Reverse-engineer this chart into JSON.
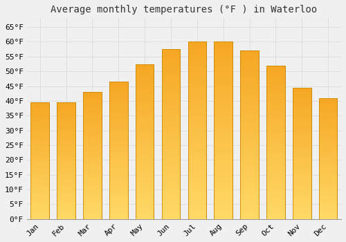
{
  "title": "Average monthly temperatures (°F ) in Waterloo",
  "months": [
    "Jan",
    "Feb",
    "Mar",
    "Apr",
    "May",
    "Jun",
    "Jul",
    "Aug",
    "Sep",
    "Oct",
    "Nov",
    "Dec"
  ],
  "values": [
    39.5,
    39.5,
    43.0,
    46.5,
    52.5,
    57.5,
    60.0,
    60.0,
    57.0,
    52.0,
    44.5,
    41.0
  ],
  "bar_color_top": "#FFD966",
  "bar_color_bottom": "#F5A623",
  "bar_edge_color": "#CC8800",
  "ylim": [
    0,
    68
  ],
  "yticks": [
    0,
    5,
    10,
    15,
    20,
    25,
    30,
    35,
    40,
    45,
    50,
    55,
    60,
    65
  ],
  "background_color": "#f0f0f0",
  "grid_color": "#dddddd",
  "title_fontsize": 10,
  "tick_fontsize": 8,
  "font_family": "monospace"
}
